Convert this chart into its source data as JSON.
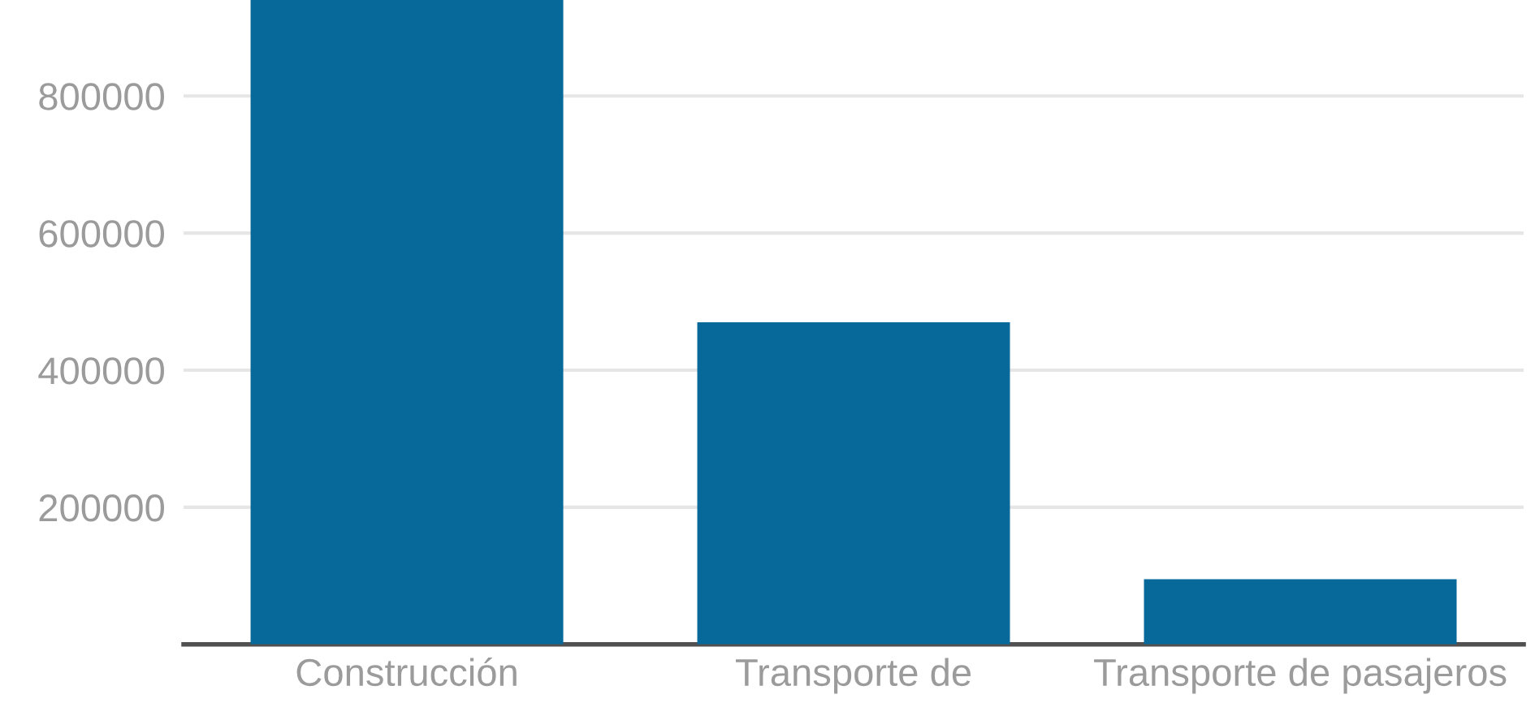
{
  "chart_data": {
    "type": "bar",
    "categories": [
      "Construcción",
      "Transporte de",
      "Transporte de pasajeros"
    ],
    "values": [
      940000,
      470000,
      95000
    ],
    "color": "#07689a",
    "ylim": [
      0,
      940000
    ],
    "yticks": [
      200000,
      400000,
      600000,
      800000
    ],
    "grid": "y"
  }
}
